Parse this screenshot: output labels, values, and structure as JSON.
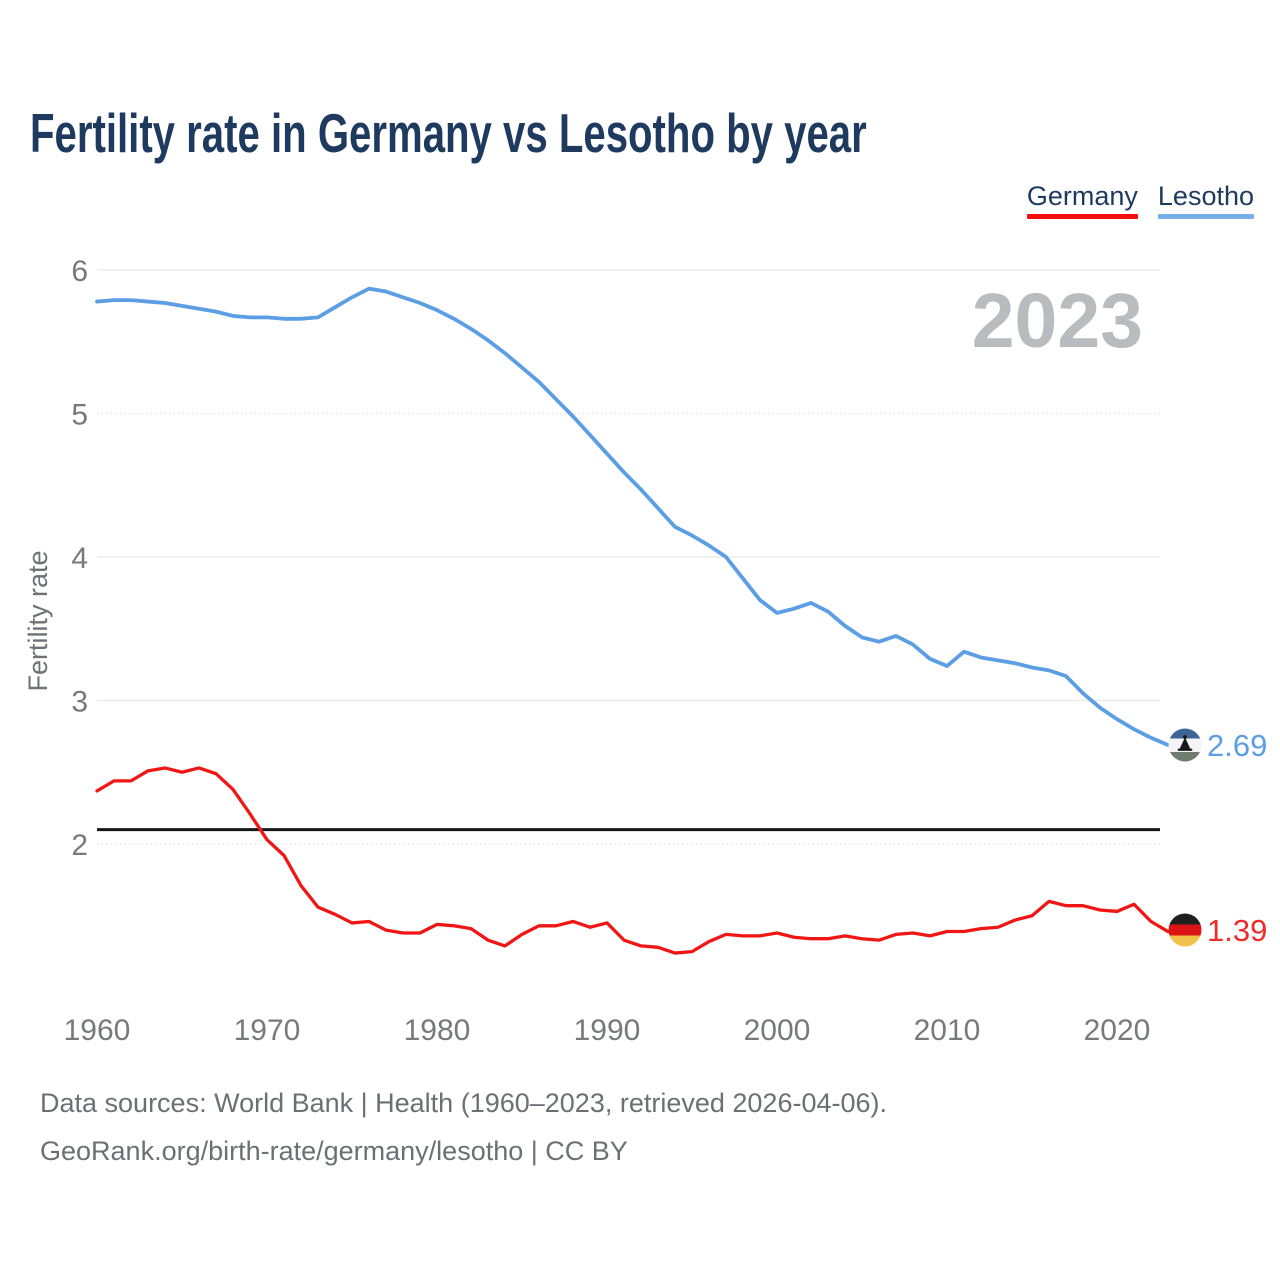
{
  "title": "Fertility rate in Germany vs Lesotho by year",
  "watermark": "2023",
  "legend": [
    {
      "label": "Germany",
      "color": "#F40D0D"
    },
    {
      "label": "Lesotho",
      "color": "#76AFE6"
    }
  ],
  "y_axis": {
    "label": "Fertility rate",
    "ticks": [
      6,
      5,
      4,
      3,
      2
    ]
  },
  "x_axis": {
    "ticks": [
      1960,
      1970,
      1980,
      1990,
      2000,
      2010,
      2020
    ]
  },
  "reference_line": {
    "value": 2.1,
    "color": "#14171C"
  },
  "end_labels": [
    {
      "series": "Lesotho",
      "value": "2.69",
      "color": "#5C9EE4",
      "flag": "lesotho-flag"
    },
    {
      "series": "Germany",
      "value": "1.39",
      "color": "#EC2D2A",
      "flag": "germany-flag"
    }
  ],
  "footer": {
    "line1": "Data sources: World Bank | Health (1960–2023, retrieved 2026-04-06).",
    "line2": "GeoRank.org/birth-rate/germany/lesotho | CC BY"
  },
  "chart_data": {
    "type": "line",
    "title": "Fertility rate in Germany vs Lesotho by year",
    "xlabel": "",
    "ylabel": "Fertility rate",
    "x_range": [
      1960,
      2023
    ],
    "ylim": [
      1.0,
      6.3
    ],
    "grid": "horizontal",
    "legend_position": "top-right",
    "annotations": {
      "replacement_rate_line": 2.1,
      "watermark_year": "2023"
    },
    "years": [
      1960,
      1961,
      1962,
      1963,
      1964,
      1965,
      1966,
      1967,
      1968,
      1969,
      1970,
      1971,
      1972,
      1973,
      1974,
      1975,
      1976,
      1977,
      1978,
      1979,
      1980,
      1981,
      1982,
      1983,
      1984,
      1985,
      1986,
      1987,
      1988,
      1989,
      1990,
      1991,
      1992,
      1993,
      1994,
      1995,
      1996,
      1997,
      1998,
      1999,
      2000,
      2001,
      2002,
      2003,
      2004,
      2005,
      2006,
      2007,
      2008,
      2009,
      2010,
      2011,
      2012,
      2013,
      2014,
      2015,
      2016,
      2017,
      2018,
      2019,
      2020,
      2021,
      2022,
      2023
    ],
    "series": [
      {
        "name": "Lesotho",
        "color": "#5C9EE4",
        "final_value": 2.69,
        "values": [
          5.78,
          5.79,
          5.79,
          5.78,
          5.77,
          5.75,
          5.73,
          5.71,
          5.68,
          5.67,
          5.67,
          5.66,
          5.66,
          5.67,
          5.74,
          5.81,
          5.87,
          5.85,
          5.81,
          5.77,
          5.72,
          5.66,
          5.59,
          5.51,
          5.42,
          5.32,
          5.22,
          5.1,
          4.98,
          4.85,
          4.72,
          4.59,
          4.47,
          4.34,
          4.21,
          4.15,
          4.08,
          4.0,
          3.85,
          3.7,
          3.61,
          3.64,
          3.68,
          3.62,
          3.52,
          3.44,
          3.41,
          3.45,
          3.39,
          3.29,
          3.24,
          3.34,
          3.3,
          3.28,
          3.26,
          3.23,
          3.21,
          3.17,
          3.05,
          2.95,
          2.87,
          2.8,
          2.74,
          2.69
        ]
      },
      {
        "name": "Germany",
        "color": "#F11616",
        "final_value": 1.39,
        "values": [
          2.37,
          2.44,
          2.44,
          2.51,
          2.53,
          2.5,
          2.53,
          2.49,
          2.38,
          2.21,
          2.03,
          1.92,
          1.71,
          1.56,
          1.51,
          1.45,
          1.46,
          1.4,
          1.38,
          1.38,
          1.44,
          1.43,
          1.41,
          1.33,
          1.29,
          1.37,
          1.43,
          1.43,
          1.46,
          1.42,
          1.45,
          1.33,
          1.29,
          1.28,
          1.24,
          1.25,
          1.32,
          1.37,
          1.36,
          1.36,
          1.38,
          1.35,
          1.34,
          1.34,
          1.36,
          1.34,
          1.33,
          1.37,
          1.38,
          1.36,
          1.39,
          1.39,
          1.41,
          1.42,
          1.47,
          1.5,
          1.6,
          1.57,
          1.57,
          1.54,
          1.53,
          1.58,
          1.46,
          1.39
        ]
      }
    ]
  }
}
